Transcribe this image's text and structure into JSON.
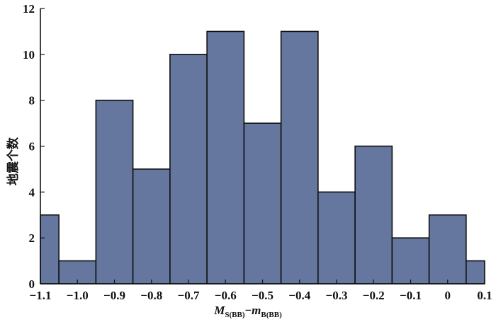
{
  "chart_data": {
    "type": "bar",
    "title": "",
    "xlabel": {
      "main": "M",
      "sub1": "S(BB)",
      "minus": "−",
      "main2": "m",
      "sub2": "B(BB)"
    },
    "ylabel": "地震个数",
    "bin_edges": [
      -1.15,
      -1.05,
      -0.95,
      -0.85,
      -0.75,
      -0.65,
      -0.55,
      -0.45,
      -0.35,
      -0.25,
      -0.15,
      -0.05,
      0.05,
      0.15
    ],
    "values": [
      3,
      1,
      8,
      5,
      10,
      11,
      7,
      11,
      4,
      6,
      2,
      3,
      1
    ],
    "xlim": [
      -1.1,
      0.1
    ],
    "ylim": [
      0,
      12
    ],
    "xticks": [
      -1.1,
      -1.0,
      -0.9,
      -0.8,
      -0.7,
      -0.6,
      -0.5,
      -0.4,
      -0.3,
      -0.2,
      -0.1,
      0,
      0.1
    ],
    "xtick_labels": [
      "−1.1",
      "−1.0",
      "−0.9",
      "−0.8",
      "−0.7",
      "−0.6",
      "−0.5",
      "−0.4",
      "−0.3",
      "−0.2",
      "−0.1",
      "0",
      "0.1"
    ],
    "yticks": [
      0,
      2,
      4,
      6,
      8,
      10,
      12
    ],
    "ytick_labels": [
      "0",
      "2",
      "4",
      "6",
      "8",
      "10",
      "12"
    ],
    "bar_color": "#65779f",
    "edge_color": "#111111",
    "grid": false
  }
}
